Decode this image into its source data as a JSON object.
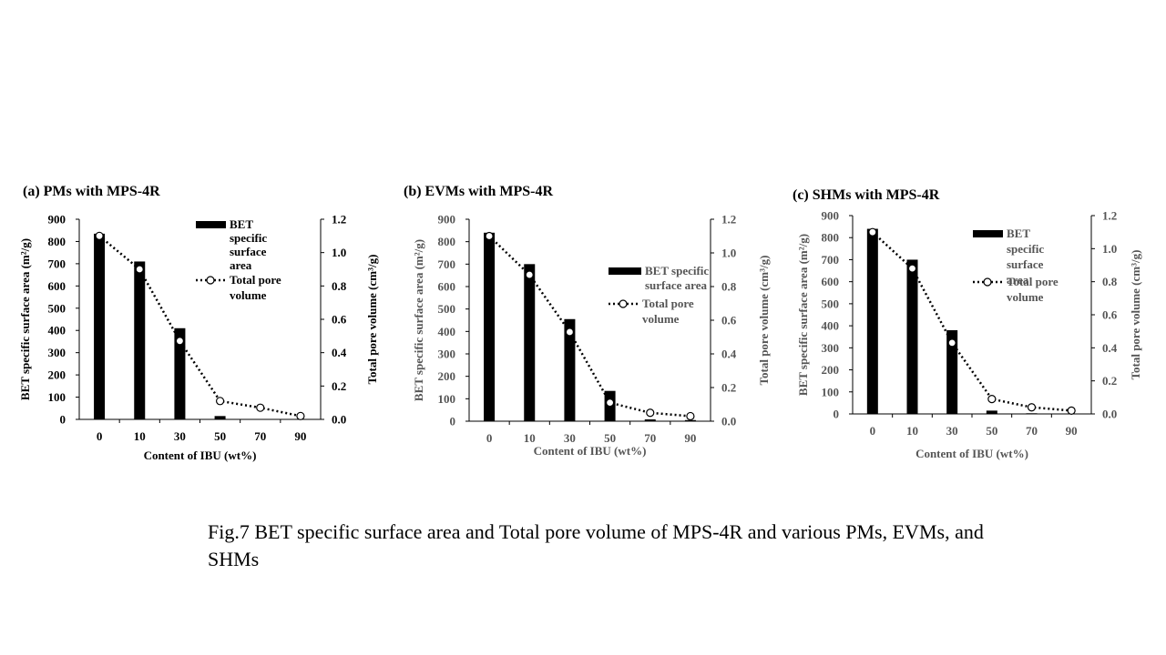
{
  "caption": "Fig.7 BET specific surface area and Total pore volume of MPS-4R and various PMs, EVMs, and SHMs",
  "chart_data": [
    {
      "type": "bar+line",
      "title": "(a) PMs with MPS-4R",
      "categories": [
        "0",
        "10",
        "30",
        "50",
        "70",
        "90"
      ],
      "xlabel": "Content of IBU (wt%)",
      "ylabel_left": "BET specific surface area (m²/g)",
      "ylabel_right": "Total pore volume (cm³/g)",
      "ylim_left": [
        0,
        900
      ],
      "ylim_right": [
        0,
        1.2
      ],
      "left_ticks": [
        "0",
        "100",
        "200",
        "300",
        "400",
        "500",
        "600",
        "700",
        "800",
        "900"
      ],
      "right_ticks": [
        "0.0",
        "0.2",
        "0.4",
        "0.6",
        "0.8",
        "1.0",
        "1.2"
      ],
      "series": [
        {
          "name": "BET specific surface area",
          "kind": "bar",
          "axis": "left",
          "values": [
            835,
            710,
            410,
            15,
            2,
            1
          ]
        },
        {
          "name": "Total pore volume",
          "kind": "line",
          "axis": "right",
          "values": [
            1.1,
            0.9,
            0.47,
            0.11,
            0.07,
            0.02
          ]
        }
      ],
      "legend_bar": [
        "BET",
        "specific",
        "surface",
        "area"
      ],
      "legend_line": [
        "Total pore",
        "volume"
      ]
    },
    {
      "type": "bar+line",
      "title": "(b) EVMs with MPS-4R",
      "categories": [
        "0",
        "10",
        "30",
        "50",
        "70",
        "90"
      ],
      "xlabel": "Content of IBU (wt%)",
      "ylabel_left": "BET specific surface area (m²/g)",
      "ylabel_right": "Total pore volume (cm³/g)",
      "ylim_left": [
        0,
        900
      ],
      "ylim_right": [
        0,
        1.2
      ],
      "left_ticks": [
        "0",
        "100",
        "200",
        "300",
        "400",
        "500",
        "600",
        "700",
        "800",
        "900"
      ],
      "right_ticks": [
        "0.0",
        "0.2",
        "0.4",
        "0.6",
        "0.8",
        "1.0",
        "1.2"
      ],
      "series": [
        {
          "name": "BET specific surface area",
          "kind": "bar",
          "axis": "left",
          "values": [
            840,
            700,
            455,
            135,
            8,
            5
          ]
        },
        {
          "name": "Total pore volume",
          "kind": "line",
          "axis": "right",
          "values": [
            1.1,
            0.87,
            0.53,
            0.11,
            0.05,
            0.03
          ]
        }
      ],
      "legend_bar": [
        "BET specific",
        "surface area"
      ],
      "legend_line": [
        "Total pore",
        "volume"
      ]
    },
    {
      "type": "bar+line",
      "title": "(c) SHMs with MPS-4R",
      "categories": [
        "0",
        "10",
        "30",
        "50",
        "70",
        "90"
      ],
      "xlabel": "Content of IBU (wt%)",
      "ylabel_left": "BET specific surface area (m²/g)",
      "ylabel_right": "Total pore volume (cm³/g)",
      "ylim_left": [
        0,
        900
      ],
      "ylim_right": [
        0,
        1.2
      ],
      "left_ticks": [
        "0",
        "100",
        "200",
        "300",
        "400",
        "500",
        "600",
        "700",
        "800",
        "900"
      ],
      "right_ticks": [
        "0.0",
        "0.2",
        "0.4",
        "0.6",
        "0.8",
        "1.0",
        "1.2"
      ],
      "series": [
        {
          "name": "BET specific surface area",
          "kind": "bar",
          "axis": "left",
          "values": [
            840,
            700,
            380,
            15,
            3,
            2
          ]
        },
        {
          "name": "Total pore volume",
          "kind": "line",
          "axis": "right",
          "values": [
            1.1,
            0.88,
            0.43,
            0.09,
            0.04,
            0.02
          ]
        }
      ],
      "legend_bar": [
        "BET",
        "specific",
        "surface",
        "area"
      ],
      "legend_line": [
        "Total pore",
        "volume"
      ]
    }
  ]
}
